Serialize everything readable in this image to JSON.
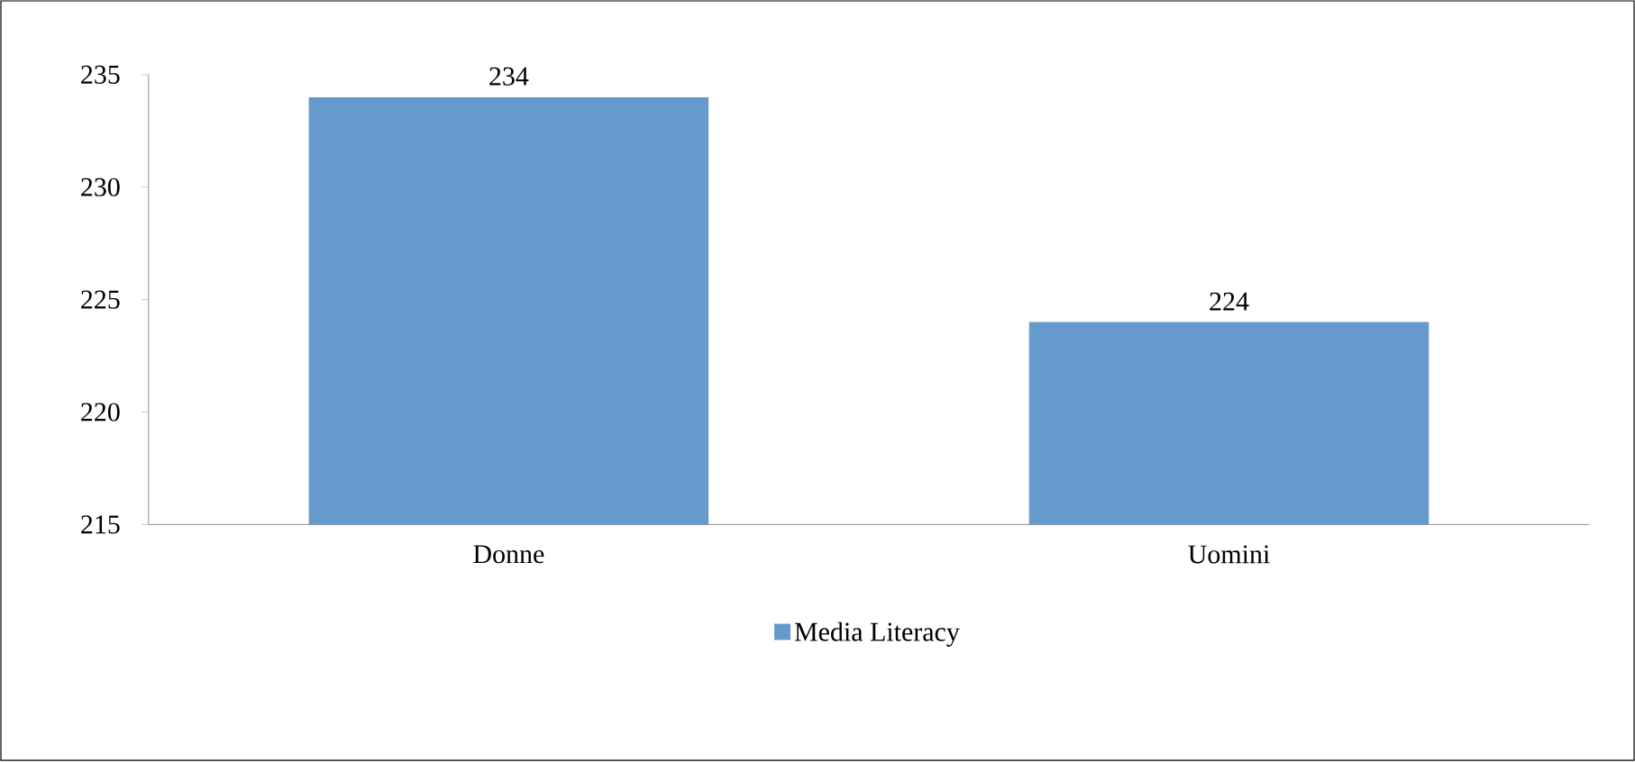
{
  "chart_data": {
    "type": "bar",
    "categories": [
      "Donne",
      "Uomini"
    ],
    "series": [
      {
        "name": "Media Literacy",
        "color": "#6699cc",
        "values": [
          234,
          224
        ]
      }
    ],
    "ylim": [
      215,
      235
    ],
    "yticks": [
      215,
      220,
      225,
      230,
      235
    ],
    "data_labels": true,
    "legend": "bottom",
    "grid": false
  }
}
